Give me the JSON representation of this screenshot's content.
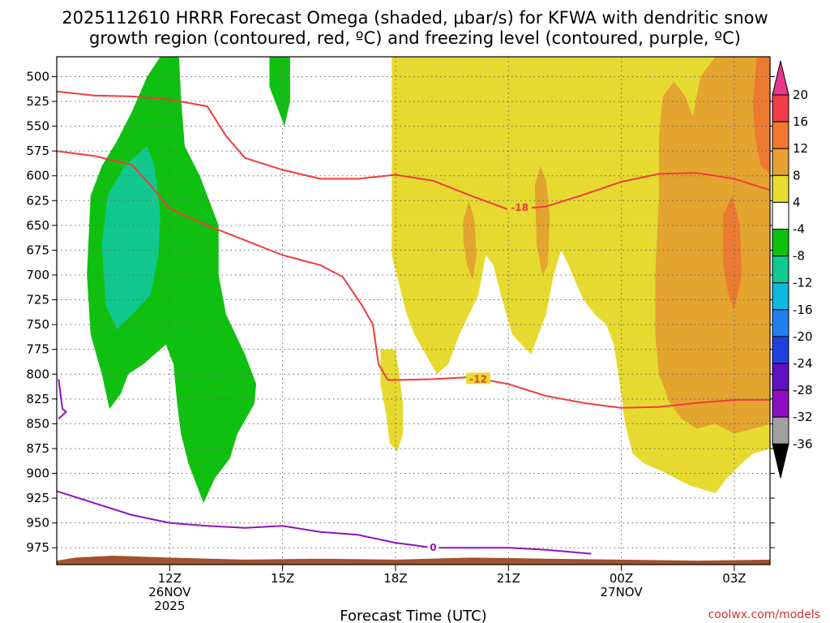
{
  "chart_data": {
    "type": "heatmap",
    "title_line1": "2025112610 HRRR Forecast Omega (shaded, μbar/s) for KFWA with dendritic snow",
    "title_line2": "growth region (contoured, red, ºC) and freezing level (contoured, purple, ºC)",
    "xlabel": "Forecast Time (UTC)",
    "credit": "coolwx.com/models",
    "x_ticks": [
      {
        "label": "12Z",
        "sub1": "26NOV",
        "sub2": "2025",
        "hour": 12
      },
      {
        "label": "15Z",
        "sub1": "",
        "sub2": "",
        "hour": 15
      },
      {
        "label": "18Z",
        "sub1": "",
        "sub2": "",
        "hour": 18
      },
      {
        "label": "21Z",
        "sub1": "",
        "sub2": "",
        "hour": 21
      },
      {
        "label": "00Z",
        "sub1": "27NOV",
        "sub2": "",
        "hour": 24
      },
      {
        "label": "03Z",
        "sub1": "",
        "sub2": "",
        "hour": 27
      }
    ],
    "xlim_hours": [
      9,
      27.95
    ],
    "y_ticks": [
      500,
      525,
      550,
      575,
      600,
      625,
      650,
      675,
      700,
      725,
      750,
      775,
      800,
      825,
      850,
      875,
      900,
      925,
      950,
      975
    ],
    "ylim_hpa": [
      480,
      992
    ],
    "colorbar": {
      "labels": [
        "20",
        "16",
        "12",
        "8",
        "4",
        "-4",
        "-8",
        "-12",
        "-16",
        "-20",
        "-24",
        "-28",
        "-32",
        "-36"
      ],
      "colors": [
        "#e8378c",
        "#f03c48",
        "#f07830",
        "#e8a030",
        "#e8dc30",
        "#ffffff",
        "#10c010",
        "#10c890",
        "#10b8e0",
        "#2080f0",
        "#2040e0",
        "#6010c0",
        "#9010c0",
        "#a0a0a0",
        "#000000"
      ]
    },
    "omega_colors": {
      "yellow": "#e6da30",
      "lightorange": "#e4a430",
      "orange": "#ec7a30",
      "green": "#10c010",
      "teal": "#10c88e"
    },
    "terrain_color": "#a0522d",
    "dgz_color": "#f03c3c",
    "freezing_color": "#9010c0",
    "dgz_contours": [
      {
        "label": "-18",
        "label_at": [
          21.3,
          632
        ],
        "points": [
          [
            9,
            515
          ],
          [
            10,
            519
          ],
          [
            11,
            520
          ],
          [
            12,
            523
          ],
          [
            13,
            530
          ],
          [
            13.5,
            560
          ],
          [
            14,
            582
          ],
          [
            15,
            594
          ],
          [
            16,
            603
          ],
          [
            17,
            603
          ],
          [
            18,
            599
          ],
          [
            19,
            605
          ],
          [
            20,
            620
          ],
          [
            21,
            634
          ],
          [
            22,
            631
          ],
          [
            23,
            619
          ],
          [
            24,
            606
          ],
          [
            25,
            598
          ],
          [
            26,
            597
          ],
          [
            27,
            603
          ],
          [
            28,
            615
          ]
        ]
      },
      {
        "label": "-12",
        "label_at": [
          20.2,
          805
        ],
        "points": [
          [
            9,
            575
          ],
          [
            10,
            580
          ],
          [
            11,
            589
          ],
          [
            11.5,
            610
          ],
          [
            12,
            633
          ],
          [
            13,
            650
          ],
          [
            14,
            665
          ],
          [
            15,
            680
          ],
          [
            16,
            690
          ],
          [
            16.6,
            702
          ],
          [
            17.1,
            730
          ],
          [
            17.4,
            750
          ],
          [
            17.55,
            790
          ],
          [
            17.8,
            806
          ],
          [
            19,
            805
          ],
          [
            20,
            803
          ],
          [
            21,
            810
          ],
          [
            22,
            822
          ],
          [
            23,
            829
          ],
          [
            24,
            834
          ],
          [
            25,
            833
          ],
          [
            26,
            829
          ],
          [
            27,
            826
          ],
          [
            28,
            826
          ]
        ]
      }
    ],
    "freezing_contour": {
      "label": "0",
      "label_at": [
        19,
        975
      ],
      "points": [
        [
          9,
          918
        ],
        [
          10,
          930
        ],
        [
          11,
          942
        ],
        [
          12,
          950
        ],
        [
          13,
          953
        ],
        [
          14,
          955
        ],
        [
          15,
          953
        ],
        [
          16,
          959
        ],
        [
          17,
          962
        ],
        [
          18,
          970
        ],
        [
          19,
          975
        ],
        [
          20,
          975
        ],
        [
          21,
          975
        ],
        [
          22,
          977
        ],
        [
          23.2,
          981
        ]
      ]
    },
    "freezing_contour_left": {
      "points": [
        [
          9.05,
          805
        ],
        [
          9.15,
          835
        ],
        [
          9.25,
          838
        ],
        [
          9.05,
          845
        ]
      ]
    }
  }
}
